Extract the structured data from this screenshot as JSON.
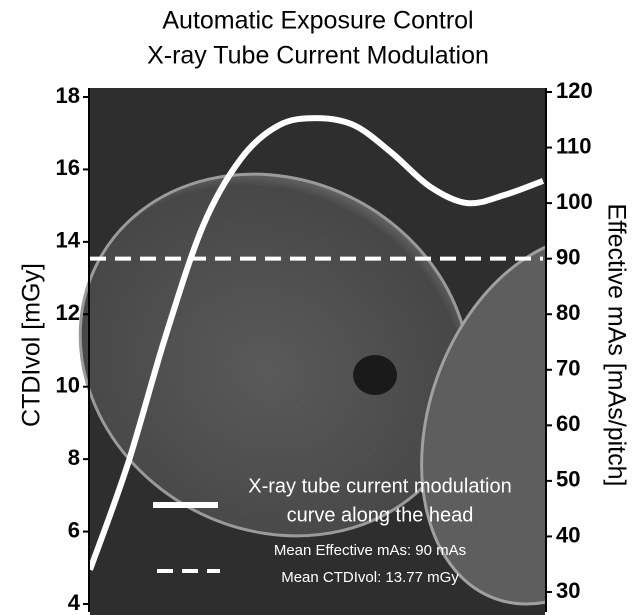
{
  "chart_data": {
    "type": "line",
    "title": [
      "Automatic Exposure Control",
      "X-ray Tube Current Modulation"
    ],
    "ylabel": "CTDIvol [mGy]",
    "y2label": "Effective mAs [mAs/pitch]",
    "ylim": [
      4,
      18
    ],
    "yticks": [
      4,
      6,
      8,
      10,
      12,
      14,
      16,
      18
    ],
    "y2lim": [
      30,
      120
    ],
    "y2ticks": [
      30,
      40,
      50,
      60,
      70,
      80,
      90,
      100,
      110,
      120
    ],
    "categories": [
      null,
      null,
      null,
      null,
      null,
      null,
      null,
      null,
      null,
      null,
      null,
      null,
      null
    ],
    "series": [
      {
        "name": "",
        "color": "#ffffff",
        "axis": "y2",
        "values": [
          34,
          53,
          76,
          96,
          108,
          114,
          115.3,
          114,
          109,
          103,
          100,
          101.5,
          104
        ]
      }
    ],
    "mean_line": {
      "value": 90,
      "axis": "y2",
      "color": "#ffffff"
    },
    "annotations": {
      "curve": [
        "X-ray tube current modulation",
        "curve along the head"
      ],
      "mean": [
        "Mean Effective mAs: 90 mAs",
        "Mean CTDIvol: 13.77 mGy"
      ]
    }
  }
}
